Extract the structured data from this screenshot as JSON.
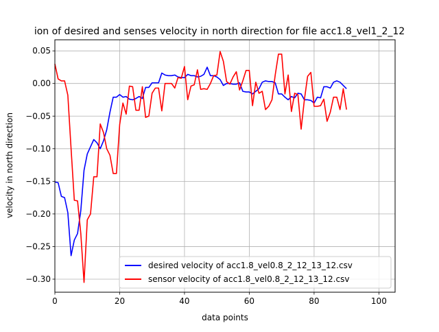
{
  "chart_data": {
    "type": "line",
    "title": "ion of desired and senses velocity in north direction for file acc1.8_vel1_2_12",
    "xlabel": "data points",
    "ylabel": "velocity in north direction",
    "xlim": [
      0,
      105
    ],
    "ylim": [
      -0.32,
      0.067
    ],
    "xticks": [
      0,
      20,
      40,
      60,
      80,
      100
    ],
    "yticks": [
      0.05,
      0.0,
      -0.05,
      -0.1,
      -0.15,
      -0.2,
      -0.25,
      -0.3
    ],
    "xtick_labels": [
      "0",
      "20",
      "40",
      "60",
      "80",
      "100"
    ],
    "ytick_labels": [
      "0.05",
      "0.00",
      "−0.05",
      "−0.10",
      "−0.15",
      "−0.20",
      "−0.25",
      "−0.30"
    ],
    "grid": true,
    "legend": {
      "position": "lower-right"
    },
    "series": [
      {
        "name": "desired velocity of acc1.8_vel0.8_2_12_13_12.csv",
        "color": "#0000ff",
        "x": [
          0,
          1,
          2,
          3,
          4,
          5,
          6,
          7,
          8,
          9,
          10,
          11,
          12,
          13,
          14,
          15,
          16,
          17,
          18,
          19,
          20,
          21,
          22,
          23,
          24,
          25,
          26,
          27,
          28,
          29,
          30,
          31,
          32,
          33,
          34,
          35,
          36,
          37,
          38,
          39,
          40,
          41,
          42,
          43,
          44,
          45,
          46,
          47,
          48,
          49,
          50,
          51,
          52,
          53,
          54,
          55,
          56,
          57,
          58,
          59,
          60,
          61,
          62,
          63,
          64,
          65,
          66,
          67,
          68,
          69,
          70,
          71,
          72,
          73,
          74,
          75,
          76,
          77,
          78,
          79,
          80,
          81,
          82,
          83,
          84,
          85,
          86,
          87,
          88,
          89,
          90
        ],
        "y": [
          -0.151,
          -0.152,
          -0.173,
          -0.175,
          -0.198,
          -0.264,
          -0.24,
          -0.23,
          -0.195,
          -0.133,
          -0.108,
          -0.097,
          -0.086,
          -0.091,
          -0.1,
          -0.088,
          -0.071,
          -0.044,
          -0.021,
          -0.021,
          -0.017,
          -0.021,
          -0.02,
          -0.024,
          -0.025,
          -0.023,
          -0.02,
          -0.023,
          -0.006,
          -0.006,
          0.001,
          0.001,
          0.001,
          0.016,
          0.013,
          0.012,
          0.012,
          0.013,
          0.01,
          0.009,
          0.009,
          0.014,
          0.012,
          0.012,
          0.01,
          0.011,
          0.014,
          0.025,
          0.012,
          0.012,
          0.01,
          0.006,
          -0.003,
          0.0,
          0.0,
          -0.001,
          -0.001,
          0.001,
          -0.012,
          -0.013,
          -0.013,
          -0.016,
          -0.012,
          -0.008,
          0.002,
          0.004,
          0.003,
          0.003,
          0.001,
          -0.016,
          -0.016,
          -0.021,
          -0.025,
          -0.02,
          -0.022,
          -0.015,
          -0.016,
          -0.025,
          -0.025,
          -0.026,
          -0.03,
          -0.021,
          -0.022,
          -0.005,
          -0.005,
          -0.007,
          0.002,
          0.004,
          0.002,
          -0.003,
          -0.008
        ]
      },
      {
        "name": "sensor velocity of acc1.8_vel0.8_2_12_13_12.csv",
        "color": "#ff0000",
        "x": [
          0,
          1,
          2,
          3,
          4,
          5,
          6,
          7,
          8,
          9,
          10,
          11,
          12,
          13,
          14,
          15,
          16,
          17,
          18,
          19,
          20,
          21,
          22,
          23,
          24,
          25,
          26,
          27,
          28,
          29,
          30,
          31,
          32,
          33,
          34,
          35,
          36,
          37,
          38,
          39,
          40,
          41,
          42,
          43,
          44,
          45,
          46,
          47,
          48,
          49,
          50,
          51,
          52,
          53,
          54,
          55,
          56,
          57,
          58,
          59,
          60,
          61,
          62,
          63,
          64,
          65,
          66,
          67,
          68,
          69,
          70,
          71,
          72,
          73,
          74,
          75,
          76,
          77,
          78,
          79,
          80,
          81,
          82,
          83,
          84,
          85,
          86,
          87,
          88,
          89,
          90
        ],
        "y": [
          0.03,
          0.007,
          0.004,
          0.004,
          -0.018,
          -0.1,
          -0.179,
          -0.18,
          -0.23,
          -0.305,
          -0.209,
          -0.2,
          -0.143,
          -0.143,
          -0.062,
          -0.075,
          -0.1,
          -0.11,
          -0.138,
          -0.138,
          -0.063,
          -0.03,
          -0.047,
          -0.004,
          -0.005,
          -0.041,
          -0.041,
          -0.005,
          -0.052,
          -0.05,
          -0.015,
          -0.007,
          -0.007,
          -0.042,
          0.0,
          0.0,
          0.0,
          -0.007,
          0.009,
          0.008,
          0.026,
          -0.025,
          -0.004,
          -0.002,
          0.021,
          -0.009,
          -0.008,
          -0.009,
          0.0,
          0.012,
          0.013,
          0.049,
          0.034,
          0.003,
          -0.001,
          0.01,
          0.018,
          -0.01,
          0.004,
          0.02,
          0.02,
          -0.034,
          0.002,
          -0.015,
          -0.012,
          -0.04,
          -0.035,
          -0.025,
          0.013,
          0.045,
          0.045,
          -0.016,
          0.013,
          -0.043,
          -0.015,
          -0.017,
          -0.07,
          -0.025,
          0.011,
          0.017,
          -0.035,
          -0.035,
          -0.034,
          -0.024,
          -0.058,
          -0.044,
          -0.021,
          -0.021,
          -0.04,
          -0.008,
          -0.04
        ]
      }
    ]
  }
}
